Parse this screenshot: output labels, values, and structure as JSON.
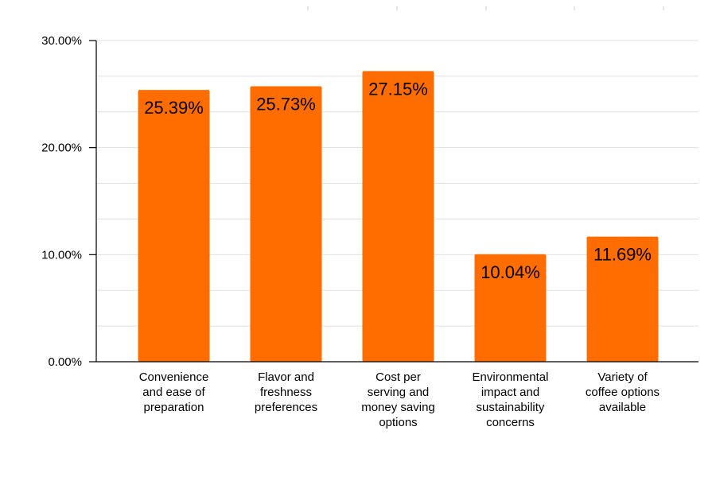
{
  "chart_data": {
    "type": "bar",
    "categories": [
      [
        "Convenience",
        "and ease of",
        "preparation"
      ],
      [
        "Flavor and",
        "freshness",
        "preferences"
      ],
      [
        "Cost per",
        "serving and",
        "money saving",
        "options"
      ],
      [
        "Environmental",
        "impact and",
        "sustainability",
        "concerns"
      ],
      [
        "Variety of",
        "coffee options",
        "available"
      ]
    ],
    "values": [
      25.39,
      25.73,
      27.15,
      10.04,
      11.69
    ],
    "data_labels": [
      "25.39%",
      "25.73%",
      "27.15%",
      "10.04%",
      "11.69%"
    ],
    "y_ticks": [
      0,
      10,
      20,
      30
    ],
    "y_tick_labels": [
      "0.00%",
      "10.00%",
      "20.00%",
      "30.00%"
    ],
    "ylim": [
      0,
      30
    ],
    "minor_gridlines": true,
    "legend": "none",
    "bar_color": "#ff6d01",
    "grid_color": "#e0e0e0",
    "axis_color": "#000000"
  }
}
